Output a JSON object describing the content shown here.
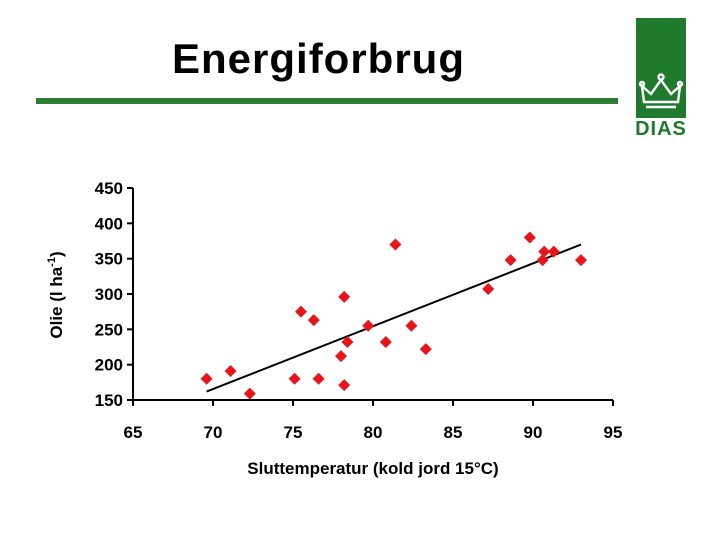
{
  "header": {
    "title": "Energiforbrug",
    "logo_text": "DIAS"
  },
  "colors": {
    "accent_green": "#1f7a2e",
    "marker_red": "#e8141b",
    "trend_line": "#000000"
  },
  "chart_data": {
    "type": "scatter",
    "title": "",
    "xlabel": "Sluttemperatur (kold jord 15°C)",
    "ylabel_main": "Olie (l ha",
    "ylabel_sup": "-1",
    "ylabel_tail": ")",
    "xlim": [
      65,
      95
    ],
    "ylim": [
      150,
      450
    ],
    "xticks": [
      "65",
      "70",
      "75",
      "80",
      "85",
      "90",
      "95"
    ],
    "yticks": [
      "150",
      "200",
      "250",
      "300",
      "350",
      "400",
      "450"
    ],
    "grid": false,
    "marker": "diamond",
    "points": [
      {
        "x": 69.6,
        "y": 180
      },
      {
        "x": 71.1,
        "y": 191
      },
      {
        "x": 72.3,
        "y": 159
      },
      {
        "x": 75.1,
        "y": 180
      },
      {
        "x": 75.5,
        "y": 275
      },
      {
        "x": 76.3,
        "y": 263
      },
      {
        "x": 76.6,
        "y": 180
      },
      {
        "x": 78.0,
        "y": 212
      },
      {
        "x": 78.2,
        "y": 171
      },
      {
        "x": 78.2,
        "y": 296
      },
      {
        "x": 78.4,
        "y": 232
      },
      {
        "x": 79.7,
        "y": 255
      },
      {
        "x": 80.8,
        "y": 232
      },
      {
        "x": 81.4,
        "y": 370
      },
      {
        "x": 82.4,
        "y": 255
      },
      {
        "x": 83.3,
        "y": 222
      },
      {
        "x": 87.2,
        "y": 307
      },
      {
        "x": 88.6,
        "y": 348
      },
      {
        "x": 89.8,
        "y": 380
      },
      {
        "x": 90.6,
        "y": 348
      },
      {
        "x": 90.7,
        "y": 360
      },
      {
        "x": 91.3,
        "y": 360
      },
      {
        "x": 93.0,
        "y": 348
      }
    ],
    "trendline": {
      "x": [
        69.6,
        93.0
      ],
      "y": [
        162,
        370
      ]
    }
  }
}
